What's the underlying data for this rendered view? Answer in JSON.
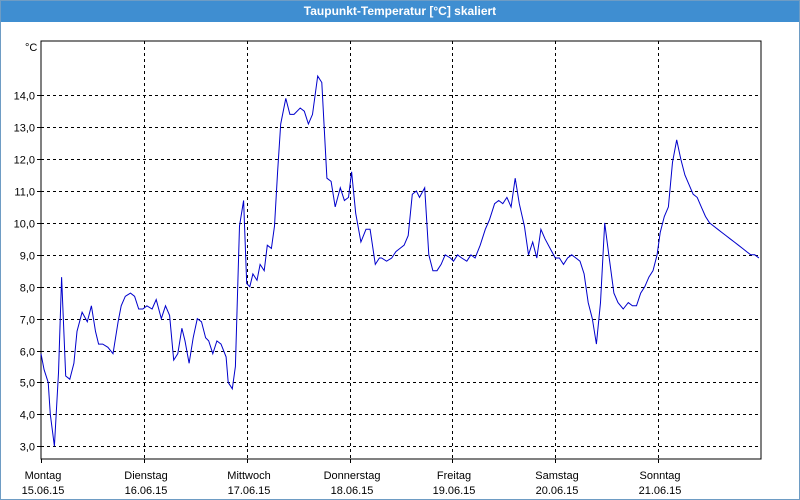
{
  "window": {
    "title": "Taupunkt-Temperatur [°C] skaliert"
  },
  "colors": {
    "line": "#0000cc",
    "grid": "#000000",
    "titlebar": "#3f8ed1"
  },
  "chart_data": {
    "type": "line",
    "ylabel": "°C",
    "ylim": [
      2.6,
      15.7
    ],
    "xlim": [
      0,
      7
    ],
    "grid": true,
    "y_ticks": [
      "3,0",
      "4,0",
      "5,0",
      "6,0",
      "7,0",
      "8,0",
      "9,0",
      "10,0",
      "11,0",
      "12,0",
      "13,0",
      "14,0"
    ],
    "x_tick_labels": [
      {
        "day": "Montag",
        "date": "15.06.15"
      },
      {
        "day": "Dienstag",
        "date": "16.06.15"
      },
      {
        "day": "Mittwoch",
        "date": "17.06.15"
      },
      {
        "day": "Donnerstag",
        "date": "18.06.15"
      },
      {
        "day": "Freitag",
        "date": "19.06.15"
      },
      {
        "day": "Samstag",
        "date": "20.06.15"
      },
      {
        "day": "Sonntag",
        "date": "21.06.15"
      }
    ],
    "series": [
      {
        "x": [
          0.0,
          0.03,
          0.07,
          0.09,
          0.13,
          0.17,
          0.2,
          0.24,
          0.28,
          0.32,
          0.35,
          0.4,
          0.45,
          0.49,
          0.53,
          0.56,
          0.6,
          0.65,
          0.7,
          0.75,
          0.78,
          0.82,
          0.87,
          0.91,
          0.95,
          0.99,
          1.03,
          1.08,
          1.12,
          1.17,
          1.21,
          1.25,
          1.29,
          1.33,
          1.37,
          1.4,
          1.44,
          1.48,
          1.52,
          1.56,
          1.6,
          1.63,
          1.67,
          1.71,
          1.75,
          1.8,
          1.82,
          1.86,
          1.89,
          1.93,
          1.97,
          2.0,
          2.03,
          2.06,
          2.1,
          2.13,
          2.17,
          2.2,
          2.24,
          2.27,
          2.3,
          2.33,
          2.38,
          2.42,
          2.46,
          2.52,
          2.56,
          2.6,
          2.64,
          2.69,
          2.73,
          2.78,
          2.82,
          2.86,
          2.91,
          2.95,
          2.99,
          3.02,
          3.06,
          3.11,
          3.16,
          3.2,
          3.25,
          3.29,
          3.31,
          3.36,
          3.41,
          3.45,
          3.49,
          3.53,
          3.57,
          3.61,
          3.65,
          3.68,
          3.73,
          3.77,
          3.81,
          3.85,
          3.89,
          3.93,
          3.98,
          4.01,
          4.05,
          4.09,
          4.14,
          4.18,
          4.22,
          4.27,
          4.32,
          4.36,
          4.41,
          4.45,
          4.49,
          4.53,
          4.57,
          4.61,
          4.65,
          4.7,
          4.74,
          4.78,
          4.82,
          4.86,
          4.9,
          4.95,
          5.0,
          5.04,
          5.08,
          5.12,
          5.16,
          5.2,
          5.24,
          5.28,
          5.32,
          5.36,
          5.4,
          5.44,
          5.48,
          5.52,
          5.57,
          5.61,
          5.66,
          5.71,
          5.75,
          5.79,
          5.83,
          5.87,
          5.91,
          5.95,
          5.99,
          6.02,
          6.06,
          6.1,
          6.14,
          6.18,
          6.22,
          6.26,
          6.3,
          6.34,
          6.38,
          6.42,
          6.46,
          6.5,
          6.54,
          6.58,
          6.62,
          6.66,
          6.7,
          6.74,
          6.78,
          6.82,
          6.86,
          6.9,
          6.94,
          6.98
        ],
        "y": [
          5.9,
          5.4,
          5.0,
          4.0,
          3.0,
          5.3,
          8.3,
          5.2,
          5.1,
          5.6,
          6.6,
          7.2,
          6.9,
          7.4,
          6.6,
          6.2,
          6.2,
          6.1,
          5.9,
          6.9,
          7.4,
          7.7,
          7.8,
          7.7,
          7.3,
          7.3,
          7.4,
          7.3,
          7.6,
          7.0,
          7.4,
          7.1,
          5.7,
          5.9,
          6.7,
          6.3,
          5.6,
          6.4,
          7.0,
          6.9,
          6.4,
          6.3,
          5.9,
          6.3,
          6.2,
          5.8,
          5.0,
          4.8,
          5.5,
          9.9,
          10.7,
          8.1,
          8.0,
          8.4,
          8.2,
          8.7,
          8.5,
          9.3,
          9.2,
          9.9,
          11.6,
          13.1,
          13.9,
          13.4,
          13.4,
          13.6,
          13.5,
          13.1,
          13.4,
          14.6,
          14.4,
          11.4,
          11.3,
          10.5,
          11.1,
          10.7,
          10.8,
          11.6,
          10.3,
          9.4,
          9.8,
          9.8,
          8.7,
          8.9,
          8.9,
          8.8,
          8.9,
          9.1,
          9.2,
          9.3,
          9.6,
          10.9,
          11.0,
          10.8,
          11.1,
          9.0,
          8.5,
          8.5,
          8.7,
          9.0,
          8.9,
          8.8,
          9.0,
          8.9,
          8.8,
          9.0,
          8.9,
          9.3,
          9.8,
          10.1,
          10.6,
          10.7,
          10.6,
          10.8,
          10.5,
          11.4,
          10.6,
          9.9,
          9.0,
          9.4,
          8.9,
          9.8,
          9.5,
          9.2,
          8.9,
          8.9,
          8.7,
          8.9,
          9.0,
          8.9,
          8.8,
          8.4,
          7.5,
          7.0,
          6.2,
          7.5,
          10.0,
          9.0,
          7.8,
          7.5,
          7.3,
          7.5,
          7.4,
          7.4,
          7.8,
          8.0,
          8.3,
          8.5,
          9.0,
          9.7,
          10.2,
          10.5,
          11.9,
          12.6,
          12.0,
          11.5,
          11.2,
          10.9,
          10.8,
          10.5,
          10.2,
          10.0,
          9.9,
          9.8,
          9.7,
          9.6,
          9.5,
          9.4,
          9.3,
          9.2,
          9.1,
          9.0,
          9.0,
          8.9
        ]
      }
    ]
  }
}
